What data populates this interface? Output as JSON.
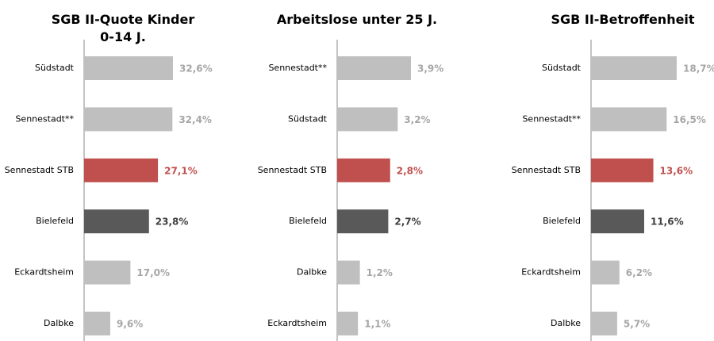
{
  "chart_data": [
    {
      "type": "bar",
      "orientation": "horizontal",
      "title": "SGB II-Quote Kinder 0-14 J.",
      "categories": [
        "Südstadt",
        "Sennestadt**",
        "Sennestadt STB",
        "Bielefeld",
        "Eckardtsheim",
        "Dalbke"
      ],
      "values": [
        32.6,
        32.4,
        27.1,
        23.8,
        17.0,
        9.6
      ],
      "value_labels": [
        "32,6%",
        "32,4%",
        "27,1%",
        "23,8%",
        "17,0%",
        "9,6%"
      ],
      "colors": [
        "#bfbfbf",
        "#bfbfbf",
        "#c0504d",
        "#595959",
        "#bfbfbf",
        "#bfbfbf"
      ]
    },
    {
      "type": "bar",
      "orientation": "horizontal",
      "title": "Arbeitslose unter 25 J.",
      "categories": [
        "Sennestadt**",
        "Südstadt",
        "Sennestadt STB",
        "Bielefeld",
        "Dalbke",
        "Eckardtsheim"
      ],
      "values": [
        3.9,
        3.2,
        2.8,
        2.7,
        1.2,
        1.1
      ],
      "value_labels": [
        "3,9%",
        "3,2%",
        "2,8%",
        "2,7%",
        "1,2%",
        "1,1%"
      ],
      "colors": [
        "#bfbfbf",
        "#bfbfbf",
        "#c0504d",
        "#595959",
        "#bfbfbf",
        "#bfbfbf"
      ]
    },
    {
      "type": "bar",
      "orientation": "horizontal",
      "title": "SGB II-Betroffenheit",
      "categories": [
        "Südstadt",
        "Sennestadt**",
        "Sennestadt STB",
        "Bielefeld",
        "Eckardtsheim",
        "Dalbke"
      ],
      "values": [
        18.7,
        16.5,
        13.6,
        11.6,
        6.2,
        5.7
      ],
      "value_labels": [
        "18,7%",
        "16,5%",
        "13,6%",
        "11,6%",
        "6,2%",
        "5,7%"
      ],
      "colors": [
        "#bfbfbf",
        "#bfbfbf",
        "#c0504d",
        "#595959",
        "#bfbfbf",
        "#bfbfbf"
      ]
    }
  ]
}
